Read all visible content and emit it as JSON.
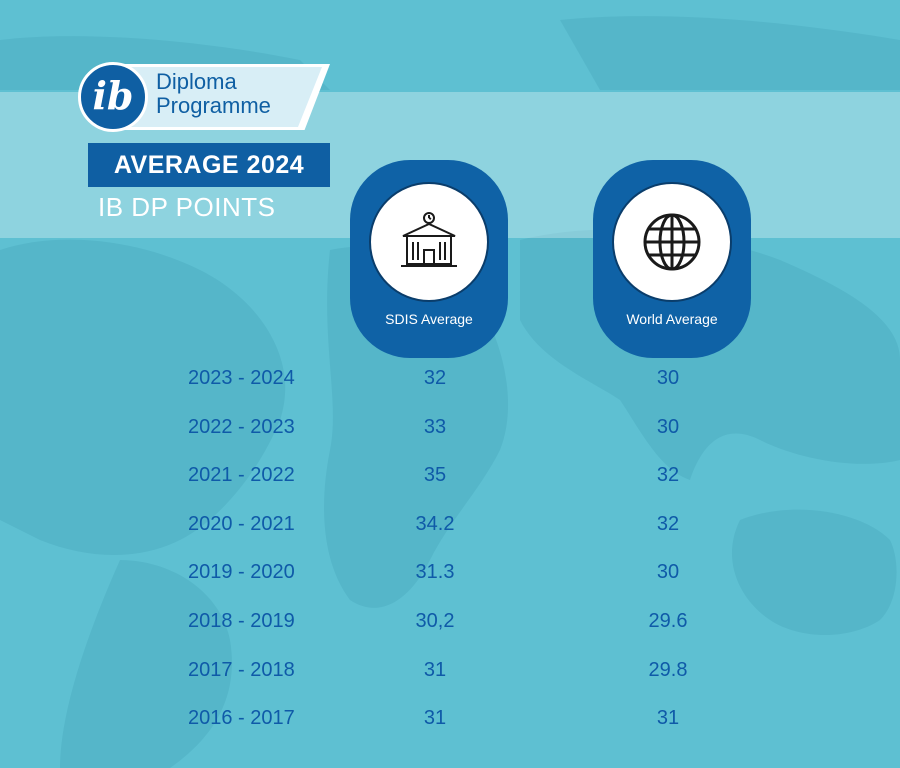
{
  "logo": {
    "letters": "ib",
    "line1": "Diploma",
    "line2": "Programme"
  },
  "title": "AVERAGE 2024",
  "subtitle": "IB DP POINTS",
  "colors": {
    "background": "#5ec0d2",
    "primary_blue": "#0f62a6",
    "text_blue": "#0f5aa8",
    "white": "#ffffff"
  },
  "columns": {
    "sdis": {
      "label": "SDIS Average",
      "icon": "school-building-icon"
    },
    "world": {
      "label": "World Average",
      "icon": "globe-icon"
    }
  },
  "chart_data": {
    "type": "table",
    "columns": [
      "SDIS Average",
      "World Average"
    ],
    "rows": [
      {
        "year": "2023 - 2024",
        "sdis": "32",
        "world": "30"
      },
      {
        "year": "2022 - 2023",
        "sdis": "33",
        "world": "30"
      },
      {
        "year": "2021 - 2022",
        "sdis": "35",
        "world": "32"
      },
      {
        "year": "2020 - 2021",
        "sdis": "34.2",
        "world": "32"
      },
      {
        "year": "2019 - 2020",
        "sdis": "31.3",
        "world": "30"
      },
      {
        "year": "2018 - 2019",
        "sdis": "30,2",
        "world": "29.6"
      },
      {
        "year": "2017 - 2018",
        "sdis": "31",
        "world": "29.8"
      },
      {
        "year": "2016 - 2017",
        "sdis": "31",
        "world": "31"
      }
    ]
  }
}
